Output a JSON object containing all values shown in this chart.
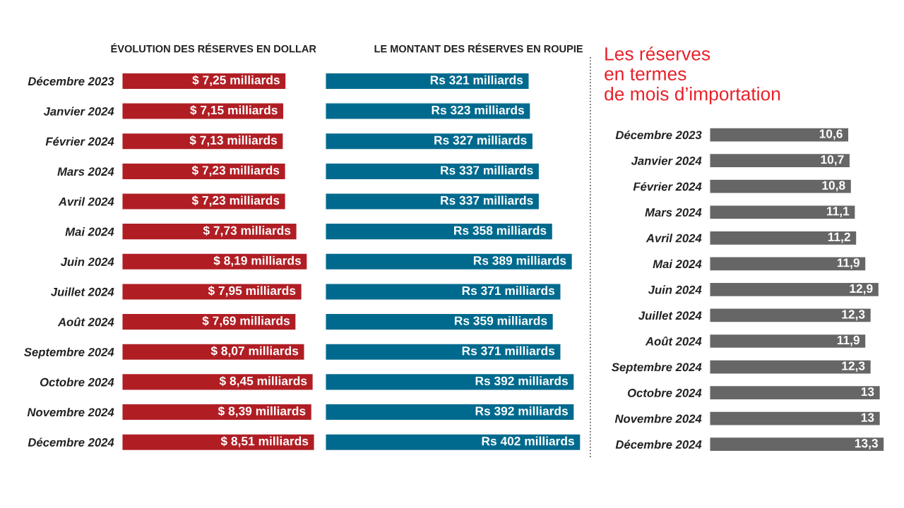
{
  "chart_data": [
    {
      "type": "bar",
      "orientation": "horizontal",
      "title": "ÉVOLUTION DES RÉSERVES EN DOLLAR",
      "tick_labels": "y",
      "grid": false,
      "categories": [
        "Décembre 2023",
        "Janvier 2024",
        "Février 2024",
        "Mars 2024",
        "Avril 2024",
        "Mai 2024",
        "Juin 2024",
        "Juillet 2024",
        "Août 2024",
        "Septembre 2024",
        "Octobre 2024",
        "Novembre 2024",
        "Décembre 2024"
      ],
      "values": [
        7.25,
        7.15,
        7.13,
        7.23,
        7.23,
        7.73,
        8.19,
        7.95,
        7.69,
        8.07,
        8.45,
        8.39,
        8.51
      ],
      "color": "#b01e24",
      "value_labels": [
        "$ 7,25 milliards",
        "$ 7,15 milliards",
        "$ 7,13 milliards",
        "$ 7,23 milliards",
        "$ 7,23 milliards",
        "$ 7,73 milliards",
        "$ 8,19 milliards",
        "$ 7,95 milliards",
        "$ 7,69 milliards",
        "$ 8,07 milliards",
        "$ 8,45 milliards",
        "$ 8,39 milliards",
        "$ 8,51 milliards"
      ]
    },
    {
      "type": "bar",
      "orientation": "horizontal",
      "title": "LE MONTANT DES RÉSERVES EN ROUPIE",
      "tick_labels": false,
      "grid": false,
      "categories": [
        null,
        null,
        null,
        null,
        null,
        null,
        null,
        null,
        null,
        null,
        null,
        null,
        null
      ],
      "values": [
        321,
        323,
        327,
        337,
        337,
        358,
        389,
        371,
        359,
        371,
        392,
        392,
        402
      ],
      "color": "#006a8e",
      "value_labels": [
        "Rs 321 milliards",
        "Rs 323 milliards",
        "Rs 327 milliards",
        "Rs 337 milliards",
        "Rs 337 milliards",
        "Rs 358 milliards",
        "Rs 389 milliards",
        "Rs 371 milliards",
        "Rs 359 milliards",
        "Rs 371 milliards",
        "Rs 392 milliards",
        "Rs 392 milliards",
        "Rs 402 milliards"
      ]
    },
    {
      "type": "bar",
      "orientation": "horizontal",
      "title": "Les réserves\nen termes\nde mois d’importation",
      "tick_labels": "y",
      "grid": false,
      "categories": [
        "Décembre 2023",
        "Janvier 2024",
        "Février 2024",
        "Mars 2024",
        "Avril 2024",
        "Mai 2024",
        "Juin 2024",
        "Juillet 2024",
        "Août 2024",
        "Septembre 2024",
        "Octobre 2024",
        "Novembre 2024",
        "Décembre 2024"
      ],
      "values": [
        10.6,
        10.7,
        10.8,
        11.1,
        11.2,
        11.9,
        12.9,
        12.3,
        11.9,
        12.3,
        13,
        13,
        13.3
      ],
      "color": "#666666",
      "value_labels": [
        "10,6",
        "10,7",
        "10,8",
        "11,1",
        "11,2",
        "11,9",
        "12,9",
        "12,3",
        "11,9",
        "12,3",
        "13",
        "13",
        "13,3"
      ]
    }
  ]
}
